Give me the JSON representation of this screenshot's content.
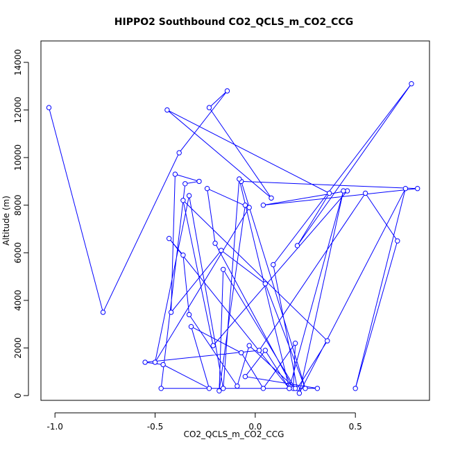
{
  "chart_data": {
    "type": "line",
    "title": "HIPPO2 Southbound CO2_QCLS_m_CO2_CCG",
    "xlabel": "CO2_QCLS_m_CO2_CCG",
    "ylabel": "Altitude (m)",
    "xlim": [
      -1.07,
      0.87
    ],
    "ylim": [
      -200,
      14900
    ],
    "xticks": [
      {
        "value": -1.0,
        "label": "-1.0"
      },
      {
        "value": -0.5,
        "label": "-0.5"
      },
      {
        "value": 0.0,
        "label": "0.0"
      },
      {
        "value": 0.5,
        "label": "0.5"
      }
    ],
    "yticks": [
      {
        "value": 0,
        "label": "0"
      },
      {
        "value": 2000,
        "label": "2000"
      },
      {
        "value": 4000,
        "label": "4000"
      },
      {
        "value": 6000,
        "label": "6000"
      },
      {
        "value": 8000,
        "label": "8000"
      },
      {
        "value": 10000,
        "label": "10000"
      },
      {
        "value": 12000,
        "label": "12000"
      },
      {
        "value": 14000,
        "label": "14000"
      }
    ],
    "series_color": "#0000ff",
    "grid": false,
    "x": [
      -1.03,
      -0.76,
      -0.38,
      -0.14,
      -0.23,
      0.08,
      -0.44,
      0.37,
      0.21,
      0.78,
      0.09,
      0.21,
      0.36,
      -0.36,
      -0.21,
      0.46,
      0.04,
      0.81,
      -0.07,
      0.25,
      0.05,
      -0.17,
      -0.42,
      -0.4,
      -0.28,
      -0.35,
      -0.47,
      0.31,
      -0.05,
      0.05,
      0.17,
      0.44,
      0.22,
      0.75,
      0.5,
      0.71,
      0.55,
      0.02,
      -0.55,
      -0.46,
      -0.23,
      -0.32,
      -0.07,
      0.04,
      0.2,
      0.19,
      -0.2,
      -0.24,
      -0.03,
      -0.5,
      -0.33,
      -0.16,
      -0.08,
      0.17,
      -0.43,
      -0.36,
      -0.33,
      -0.09,
      -0.03,
      0.2,
      -0.16,
      -0.18,
      -0.05
    ],
    "y": [
      12100,
      3500,
      10200,
      12800,
      12100,
      8300,
      12000,
      8500,
      6300,
      13100,
      5500,
      300,
      2300,
      8200,
      2100,
      8600,
      8000,
      8700,
      9000,
      300,
      4700,
      6100,
      3500,
      9300,
      9000,
      8900,
      300,
      300,
      800,
      1900,
      300,
      8600,
      100,
      8700,
      300,
      6500,
      8500,
      1900,
      1400,
      1300,
      300,
      2900,
      1800,
      300,
      2200,
      300,
      6400,
      8700,
      7900,
      1400,
      8400,
      300,
      9100,
      300,
      6600,
      5900,
      3400,
      400,
      2100,
      300,
      5300,
      200,
      8000
    ]
  }
}
